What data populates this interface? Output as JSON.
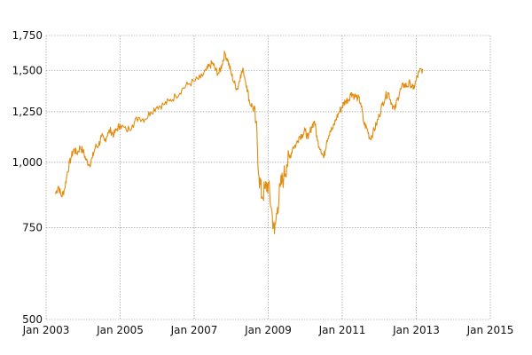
{
  "chart_data": {
    "type": "line",
    "title": "",
    "xlabel": "",
    "ylabel": "",
    "y_scale": "log",
    "xlim": [
      2003,
      2015
    ],
    "ylim": [
      500,
      1750
    ],
    "grid": true,
    "legend": "none",
    "colors": {
      "series": "#e08c10",
      "grid": "#8c8c8c",
      "text": "#111111"
    },
    "x_ticks": [
      {
        "value": 2003,
        "label": "Jan 2003"
      },
      {
        "value": 2005,
        "label": "Jan 2005"
      },
      {
        "value": 2007,
        "label": "Jan 2007"
      },
      {
        "value": 2009,
        "label": "Jan 2009"
      },
      {
        "value": 2011,
        "label": "Jan 2011"
      },
      {
        "value": 2013,
        "label": "Jan 2013"
      },
      {
        "value": 2015,
        "label": "Jan 2015"
      }
    ],
    "y_ticks": [
      {
        "value": 500,
        "label": "500"
      },
      {
        "value": 750,
        "label": "750"
      },
      {
        "value": 1000,
        "label": "1,000"
      },
      {
        "value": 1250,
        "label": "1,250"
      },
      {
        "value": 1500,
        "label": "1,500"
      },
      {
        "value": 1750,
        "label": "1,750"
      }
    ],
    "series": [
      {
        "x": [
          2003.25,
          2003.33,
          2003.42,
          2003.5,
          2003.58,
          2003.67,
          2003.75,
          2003.83,
          2003.92,
          2004.0,
          2004.08,
          2004.17,
          2004.25,
          2004.33,
          2004.42,
          2004.5,
          2004.58,
          2004.67,
          2004.75,
          2004.83,
          2004.92,
          2005.0,
          2005.17,
          2005.33,
          2005.5,
          2005.67,
          2005.83,
          2006.0,
          2006.17,
          2006.33,
          2006.5,
          2006.67,
          2006.83,
          2007.0,
          2007.17,
          2007.33,
          2007.42,
          2007.5,
          2007.58,
          2007.67,
          2007.75,
          2007.83,
          2007.92,
          2008.0,
          2008.08,
          2008.17,
          2008.25,
          2008.33,
          2008.42,
          2008.5,
          2008.58,
          2008.67,
          2008.75,
          2008.83,
          2008.92,
          2009.0,
          2009.08,
          2009.17,
          2009.25,
          2009.33,
          2009.42,
          2009.5,
          2009.58,
          2009.67,
          2009.75,
          2009.83,
          2009.92,
          2010.0,
          2010.08,
          2010.17,
          2010.25,
          2010.33,
          2010.42,
          2010.5,
          2010.58,
          2010.67,
          2010.75,
          2010.83,
          2010.92,
          2011.0,
          2011.08,
          2011.17,
          2011.25,
          2011.33,
          2011.42,
          2011.5,
          2011.58,
          2011.67,
          2011.75,
          2011.83,
          2011.92,
          2012.0,
          2012.08,
          2012.17,
          2012.25,
          2012.33,
          2012.42,
          2012.5,
          2012.58,
          2012.67,
          2012.75,
          2012.83,
          2012.92,
          2013.0,
          2013.08,
          2013.17
        ],
        "y": [
          870,
          900,
          860,
          890,
          960,
          1020,
          1060,
          1040,
          1070,
          1050,
          1010,
          990,
          1020,
          1070,
          1080,
          1120,
          1100,
          1140,
          1150,
          1130,
          1160,
          1180,
          1150,
          1180,
          1220,
          1210,
          1250,
          1280,
          1290,
          1310,
          1340,
          1380,
          1410,
          1430,
          1450,
          1500,
          1530,
          1550,
          1500,
          1480,
          1540,
          1620,
          1560,
          1480,
          1420,
          1380,
          1470,
          1500,
          1400,
          1300,
          1280,
          1190,
          940,
          860,
          890,
          910,
          820,
          730,
          820,
          900,
          940,
          990,
          1020,
          1070,
          1080,
          1120,
          1130,
          1150,
          1110,
          1170,
          1200,
          1100,
          1060,
          1020,
          1100,
          1150,
          1160,
          1210,
          1250,
          1280,
          1310,
          1320,
          1360,
          1340,
          1330,
          1300,
          1190,
          1160,
          1110,
          1140,
          1180,
          1230,
          1290,
          1340,
          1360,
          1300,
          1260,
          1330,
          1380,
          1410,
          1400,
          1420,
          1380,
          1440,
          1490,
          1510
        ]
      }
    ]
  }
}
